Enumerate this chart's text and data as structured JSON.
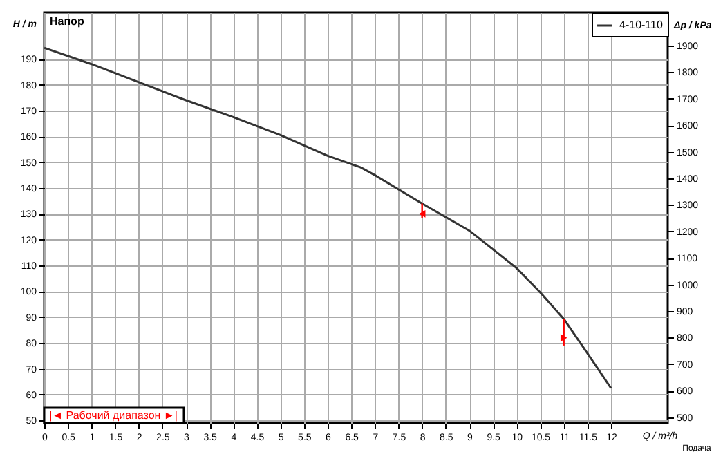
{
  "chart_data": {
    "type": "line",
    "xlabel": "Q / m³/h",
    "ylabel": "H / m",
    "y2label": "Δp / kPa",
    "annotations": [
      "Напор",
      "Подача",
      "|◄ Рабочий диапазон ►|"
    ],
    "xlim": [
      0,
      13.2
    ],
    "xticks": [
      0,
      0.5,
      1,
      1.5,
      2,
      2.5,
      3,
      3.5,
      4,
      4.5,
      5,
      5.5,
      6,
      6.5,
      7,
      7.5,
      8,
      8.5,
      9,
      9.5,
      10,
      10.5,
      11,
      11.5,
      12
    ],
    "ylim": [
      49,
      208
    ],
    "yticks": [
      50,
      60,
      70,
      80,
      90,
      100,
      110,
      120,
      130,
      140,
      150,
      160,
      170,
      180,
      190
    ],
    "y2lim": [
      478,
      2025
    ],
    "y2ticks": [
      500,
      600,
      700,
      800,
      900,
      1000,
      1100,
      1200,
      1300,
      1400,
      1500,
      1600,
      1700,
      1800,
      1900
    ],
    "grid": true,
    "legend": "top right",
    "series": [
      {
        "name": "4-10-110",
        "color": "#333333",
        "x": [
          0,
          1,
          2,
          3,
          4,
          5,
          6,
          6.7,
          7,
          8,
          9,
          10,
          10.5,
          11,
          11.5,
          12
        ],
        "values": [
          194.3,
          188,
          181,
          174,
          167.5,
          160.5,
          152.5,
          148,
          145,
          134,
          123.5,
          109,
          99.6,
          89.3,
          76,
          62.5
        ]
      },
      {
        "type": "scatter",
        "marker": "triangle",
        "color": "#ff0000",
        "x": [
          8,
          11
        ],
        "values": [
          130,
          82
        ],
        "errors": [
          [
            128.5,
            134
          ],
          [
            79,
            89.3
          ]
        ]
      }
    ]
  }
}
